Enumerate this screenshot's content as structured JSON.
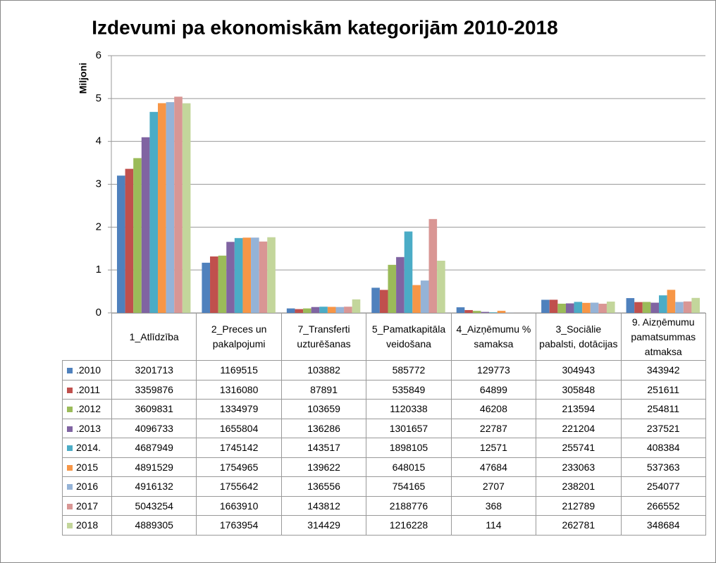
{
  "chart_data": {
    "type": "bar",
    "title": "Izdevumi pa ekonomiskām kategorijām 2010-2018",
    "y_label": "Miljoni",
    "categories": [
      "1_Atlīdzība",
      "2_Preces un pakalpojumi",
      "7_Transferti uzturēšanas",
      "5_Pamatkapitāla veidošana",
      "4_Aizņēmumu % samaksa",
      "3_Sociālie pabalsti, dotācijas",
      "9. Aizņēmumu pamatsummas atmaksa"
    ],
    "ylim": [
      0,
      6
    ],
    "yticks": [
      0,
      1,
      2,
      3,
      4,
      5,
      6
    ],
    "grid": true,
    "series": [
      {
        "name": ".2010",
        "color": "#4F81BD",
        "values": [
          3.201713,
          1.169515,
          0.103882,
          0.585772,
          0.129773,
          0.304943,
          0.343942
        ],
        "value_labels": [
          "3201713",
          "1169515",
          "103882",
          "585772",
          "129773",
          "304943",
          "343942"
        ]
      },
      {
        "name": ".2011",
        "color": "#C0504D",
        "values": [
          3.359876,
          1.31608,
          0.087891,
          0.535849,
          0.064899,
          0.305848,
          0.251611
        ],
        "value_labels": [
          "3359876",
          "1316080",
          "87891",
          "535849",
          "64899",
          "305848",
          "251611"
        ]
      },
      {
        "name": ".2012",
        "color": "#9BBB59",
        "values": [
          3.609831,
          1.334979,
          0.103659,
          1.120338,
          0.046208,
          0.213594,
          0.254811
        ],
        "value_labels": [
          "3609831",
          "1334979",
          "103659",
          "1120338",
          "46208",
          "213594",
          "254811"
        ]
      },
      {
        "name": ".2013",
        "color": "#8064A2",
        "values": [
          4.096733,
          1.655804,
          0.136286,
          1.301657,
          0.022787,
          0.221204,
          0.237521
        ],
        "value_labels": [
          "4096733",
          "1655804",
          "136286",
          "1301657",
          "22787",
          "221204",
          "237521"
        ]
      },
      {
        "name": "2014.",
        "color": "#4BACC6",
        "values": [
          4.687949,
          1.745142,
          0.143517,
          1.898105,
          0.012571,
          0.255741,
          0.408384
        ],
        "value_labels": [
          "4687949",
          "1745142",
          "143517",
          "1898105",
          "12571",
          "255741",
          "408384"
        ]
      },
      {
        "name": "2015",
        "color": "#F79646",
        "values": [
          4.891529,
          1.754965,
          0.139622,
          0.648015,
          0.047684,
          0.233063,
          0.537363
        ],
        "value_labels": [
          "4891529",
          "1754965",
          "139622",
          "648015",
          "47684",
          "233063",
          "537363"
        ]
      },
      {
        "name": "2016",
        "color": "#95B3D7",
        "values": [
          4.916132,
          1.755642,
          0.136556,
          0.754165,
          0.002707,
          0.238201,
          0.254077
        ],
        "value_labels": [
          "4916132",
          "1755642",
          "136556",
          "754165",
          "2707",
          "238201",
          "254077"
        ]
      },
      {
        "name": "2017",
        "color": "#D99694",
        "values": [
          5.043254,
          1.66391,
          0.143812,
          2.188776,
          0.000368,
          0.212789,
          0.266552
        ],
        "value_labels": [
          "5043254",
          "1663910",
          "143812",
          "2188776",
          "368",
          "212789",
          "266552"
        ]
      },
      {
        "name": "2018",
        "color": "#C3D69B",
        "values": [
          4.889305,
          1.763954,
          0.314429,
          1.216228,
          0.000114,
          0.262781,
          0.348684
        ],
        "value_labels": [
          "4889305",
          "1763954",
          "314429",
          "1216228",
          "114",
          "262781",
          "348684"
        ]
      }
    ]
  }
}
